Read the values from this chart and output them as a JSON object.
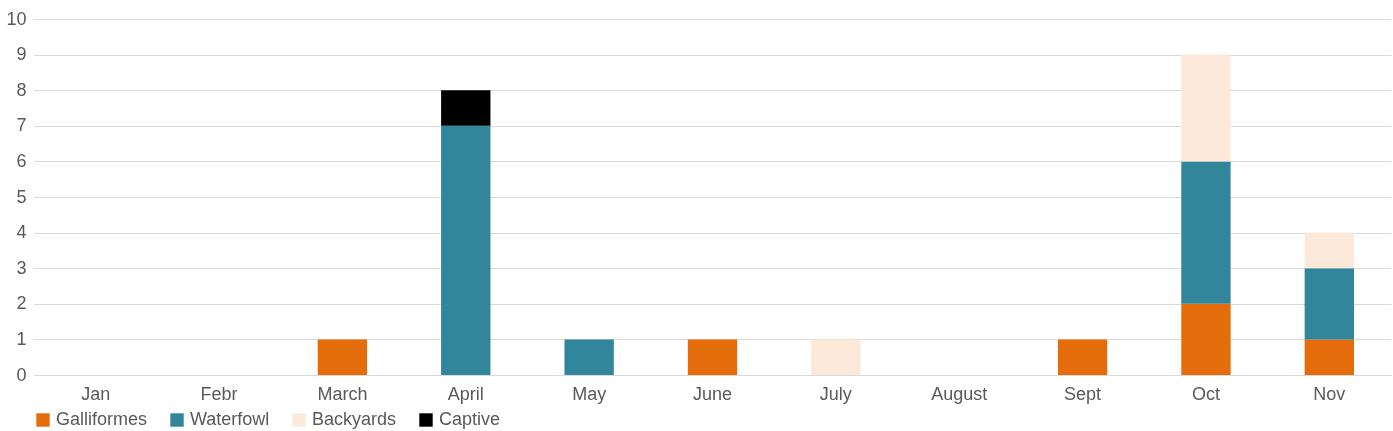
{
  "chart_data": {
    "type": "bar",
    "stacked": true,
    "categories": [
      "Jan",
      "Febr",
      "March",
      "April",
      "May",
      "June",
      "July",
      "August",
      "Sept",
      "Oct",
      "Nov"
    ],
    "series": [
      {
        "name": "Galliformes",
        "color": "#e46c0a",
        "values": [
          0,
          0,
          1,
          0,
          0,
          1,
          0,
          0,
          1,
          2,
          1
        ]
      },
      {
        "name": "Waterfowl",
        "color": "#31869b",
        "values": [
          0,
          0,
          0,
          7,
          1,
          0,
          0,
          0,
          0,
          4,
          2
        ]
      },
      {
        "name": "Backyards",
        "color": "#fde9d9",
        "values": [
          0,
          0,
          0,
          0,
          0,
          0,
          1,
          0,
          0,
          3,
          1
        ]
      },
      {
        "name": "Captive",
        "color": "#000000",
        "values": [
          0,
          0,
          0,
          1,
          0,
          0,
          0,
          0,
          0,
          0,
          0
        ]
      }
    ],
    "ylim": [
      0,
      10
    ],
    "yticks": [
      0,
      1,
      2,
      3,
      4,
      5,
      6,
      7,
      8,
      9,
      10
    ],
    "grid": "y",
    "legend": "bottom"
  }
}
